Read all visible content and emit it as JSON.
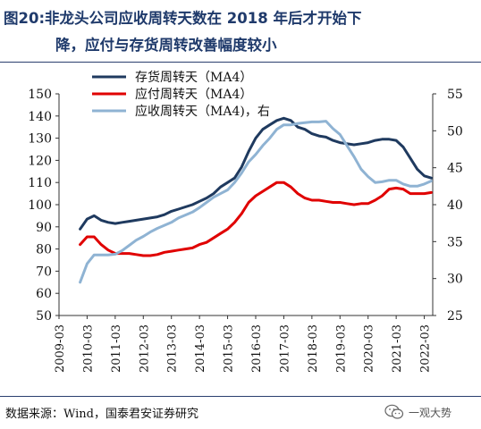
{
  "header": {
    "title_line1": "图20:非龙头公司应收周转天数在 2018 年后才开始下",
    "title_line2": "降，应付与存货周转改善幅度较小"
  },
  "footer": {
    "source": "数据来源：Wind，国泰君安证券研究",
    "watermark": "一观大势",
    "watermark_icon": "wechat-icon"
  },
  "colors": {
    "title": "#1f3a6b",
    "inventory": "#1f3a5f",
    "payable": "#e00000",
    "receivable": "#8fb3d3"
  },
  "chart_data": {
    "type": "line",
    "title": "",
    "legend_position": "top-left",
    "grid": false,
    "x_ticks": [
      "2009-03",
      "2010-03",
      "2011-03",
      "2012-03",
      "2013-03",
      "2014-03",
      "2015-03",
      "2016-03",
      "2017-03",
      "2018-03",
      "2019-03",
      "2020-03",
      "2021-03",
      "2022-03"
    ],
    "x_range": [
      2009.0,
      2022.3
    ],
    "y_left": {
      "range": [
        50,
        150
      ],
      "ticks": [
        50,
        60,
        70,
        80,
        90,
        100,
        110,
        120,
        130,
        140,
        150
      ]
    },
    "y_right": {
      "range": [
        25,
        55
      ],
      "ticks": [
        25,
        30,
        35,
        40,
        45,
        50,
        55
      ]
    },
    "series": [
      {
        "name": "存货周转天（MA4）",
        "axis": "left",
        "color": "#1f3a5f",
        "points": [
          [
            2009.75,
            89
          ],
          [
            2010.0,
            93.5
          ],
          [
            2010.25,
            95
          ],
          [
            2010.5,
            93
          ],
          [
            2010.75,
            92
          ],
          [
            2011.0,
            91.5
          ],
          [
            2011.25,
            92
          ],
          [
            2011.5,
            92.5
          ],
          [
            2011.75,
            93
          ],
          [
            2012.0,
            93.5
          ],
          [
            2012.25,
            94
          ],
          [
            2012.5,
            94.5
          ],
          [
            2012.75,
            95.5
          ],
          [
            2013.0,
            97
          ],
          [
            2013.25,
            98
          ],
          [
            2013.5,
            99
          ],
          [
            2013.75,
            100
          ],
          [
            2014.0,
            101.5
          ],
          [
            2014.25,
            103
          ],
          [
            2014.5,
            105
          ],
          [
            2014.75,
            108
          ],
          [
            2015.0,
            110
          ],
          [
            2015.25,
            112
          ],
          [
            2015.5,
            117
          ],
          [
            2015.75,
            124
          ],
          [
            2016.0,
            130
          ],
          [
            2016.25,
            134
          ],
          [
            2016.5,
            136
          ],
          [
            2016.75,
            138
          ],
          [
            2017.0,
            139
          ],
          [
            2017.25,
            138
          ],
          [
            2017.5,
            135
          ],
          [
            2017.75,
            134
          ],
          [
            2018.0,
            132
          ],
          [
            2018.25,
            131
          ],
          [
            2018.5,
            130.5
          ],
          [
            2018.75,
            129
          ],
          [
            2019.0,
            128
          ],
          [
            2019.25,
            127.5
          ],
          [
            2019.5,
            127
          ],
          [
            2019.75,
            127.5
          ],
          [
            2020.0,
            128
          ],
          [
            2020.25,
            129
          ],
          [
            2020.5,
            129.5
          ],
          [
            2020.75,
            129.5
          ],
          [
            2021.0,
            129
          ],
          [
            2021.25,
            126
          ],
          [
            2021.5,
            121
          ],
          [
            2021.75,
            116
          ],
          [
            2022.0,
            113
          ],
          [
            2022.25,
            112
          ]
        ]
      },
      {
        "name": "应付周转天（MA4）",
        "axis": "left",
        "color": "#e00000",
        "points": [
          [
            2009.75,
            82
          ],
          [
            2010.0,
            85.5
          ],
          [
            2010.25,
            85.5
          ],
          [
            2010.5,
            82
          ],
          [
            2010.75,
            79.5
          ],
          [
            2011.0,
            78
          ],
          [
            2011.25,
            78
          ],
          [
            2011.5,
            78
          ],
          [
            2011.75,
            77.5
          ],
          [
            2012.0,
            77
          ],
          [
            2012.25,
            77
          ],
          [
            2012.5,
            77.5
          ],
          [
            2012.75,
            78.5
          ],
          [
            2013.0,
            79
          ],
          [
            2013.25,
            79.5
          ],
          [
            2013.5,
            80
          ],
          [
            2013.75,
            80.5
          ],
          [
            2014.0,
            82
          ],
          [
            2014.25,
            83
          ],
          [
            2014.5,
            85
          ],
          [
            2014.75,
            87
          ],
          [
            2015.0,
            89
          ],
          [
            2015.25,
            92
          ],
          [
            2015.5,
            96
          ],
          [
            2015.75,
            101
          ],
          [
            2016.0,
            104
          ],
          [
            2016.25,
            106
          ],
          [
            2016.5,
            108
          ],
          [
            2016.75,
            110
          ],
          [
            2017.0,
            110
          ],
          [
            2017.25,
            108
          ],
          [
            2017.5,
            105
          ],
          [
            2017.75,
            103
          ],
          [
            2018.0,
            102
          ],
          [
            2018.25,
            102
          ],
          [
            2018.5,
            101.5
          ],
          [
            2018.75,
            101
          ],
          [
            2019.0,
            101
          ],
          [
            2019.25,
            100.5
          ],
          [
            2019.5,
            100
          ],
          [
            2019.75,
            100.5
          ],
          [
            2020.0,
            100.5
          ],
          [
            2020.25,
            102
          ],
          [
            2020.5,
            104
          ],
          [
            2020.75,
            107
          ],
          [
            2021.0,
            107.5
          ],
          [
            2021.25,
            107
          ],
          [
            2021.5,
            105
          ],
          [
            2021.75,
            105
          ],
          [
            2022.0,
            105
          ],
          [
            2022.25,
            105.5
          ]
        ]
      },
      {
        "name": "应收周转天（MA4)，右",
        "axis": "right",
        "color": "#8fb3d3",
        "points": [
          [
            2009.75,
            29.5
          ],
          [
            2010.0,
            32
          ],
          [
            2010.25,
            33.2
          ],
          [
            2010.5,
            33.2
          ],
          [
            2010.75,
            33.2
          ],
          [
            2011.0,
            33.3
          ],
          [
            2011.25,
            33.8
          ],
          [
            2011.5,
            34.5
          ],
          [
            2011.75,
            35.2
          ],
          [
            2012.0,
            35.7
          ],
          [
            2012.25,
            36.3
          ],
          [
            2012.5,
            36.8
          ],
          [
            2012.75,
            37.2
          ],
          [
            2013.0,
            37.6
          ],
          [
            2013.25,
            38.2
          ],
          [
            2013.5,
            38.6
          ],
          [
            2013.75,
            39
          ],
          [
            2014.0,
            39.6
          ],
          [
            2014.25,
            40.3
          ],
          [
            2014.5,
            41
          ],
          [
            2014.75,
            41.5
          ],
          [
            2015.0,
            42
          ],
          [
            2015.25,
            43
          ],
          [
            2015.5,
            44.3
          ],
          [
            2015.75,
            45.8
          ],
          [
            2016.0,
            46.8
          ],
          [
            2016.25,
            48
          ],
          [
            2016.5,
            49
          ],
          [
            2016.75,
            50.2
          ],
          [
            2017.0,
            50.8
          ],
          [
            2017.25,
            50.8
          ],
          [
            2017.5,
            51
          ],
          [
            2017.75,
            51.1
          ],
          [
            2018.0,
            51.2
          ],
          [
            2018.25,
            51.2
          ],
          [
            2018.5,
            51.3
          ],
          [
            2018.75,
            50.3
          ],
          [
            2019.0,
            49.5
          ],
          [
            2019.25,
            48
          ],
          [
            2019.5,
            46.5
          ],
          [
            2019.75,
            44.8
          ],
          [
            2020.0,
            43.8
          ],
          [
            2020.25,
            43
          ],
          [
            2020.5,
            43.1
          ],
          [
            2020.75,
            43.3
          ],
          [
            2021.0,
            43.3
          ],
          [
            2021.25,
            42.8
          ],
          [
            2021.5,
            42.5
          ],
          [
            2021.75,
            42.5
          ],
          [
            2022.0,
            42.8
          ],
          [
            2022.25,
            43.2
          ]
        ]
      }
    ]
  }
}
